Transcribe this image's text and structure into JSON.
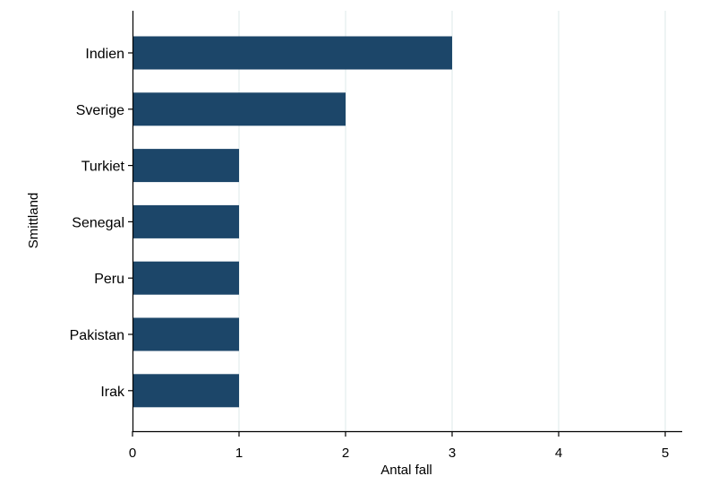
{
  "chart_data": {
    "type": "bar",
    "orientation": "horizontal",
    "categories": [
      "Indien",
      "Sverige",
      "Turkiet",
      "Senegal",
      "Peru",
      "Pakistan",
      "Irak"
    ],
    "values": [
      3,
      2,
      1,
      1,
      1,
      1,
      1
    ],
    "xlabel": "Antal fall",
    "ylabel": "Smittland",
    "xlim": [
      0,
      5
    ],
    "xticks": [
      "0",
      "1",
      "2",
      "3",
      "4",
      "5"
    ],
    "grid": "vertical",
    "bar_color": "#1c4669",
    "grid_color": "#dde8e8"
  }
}
